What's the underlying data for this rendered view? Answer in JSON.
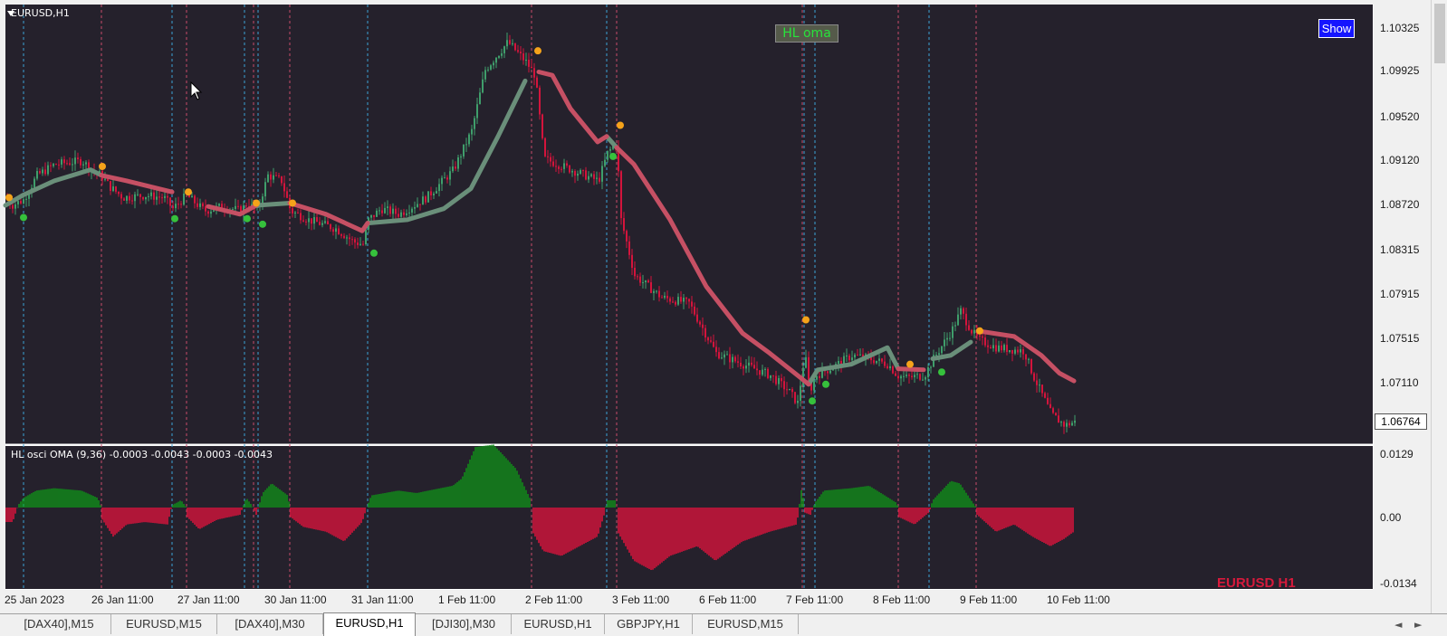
{
  "chart_window": {
    "symbol_label": "EURUSD,H1",
    "indicator_button": "HL oma",
    "show_button": "Show",
    "price_ticks": [
      "1.10325",
      "1.09925",
      "1.09520",
      "1.09120",
      "1.08720",
      "1.08315",
      "1.07915",
      "1.07515",
      "1.07110"
    ],
    "current_price": "1.06764",
    "colors": {
      "background": "#25212c",
      "bull": "#3f9e6b",
      "bear": "#d4143c",
      "ma_up": "#6a8f7a",
      "ma_down": "#c65064",
      "dot_high": "#f5a31a",
      "dot_low": "#36c13c"
    }
  },
  "oscillator": {
    "title": "HL osci OMA (9,36) -0.0003 -0.0043 -0.0003 -0.0043",
    "ticks": [
      "0.0129",
      "0.00",
      "-0.0134"
    ],
    "watermark": "EURUSD H1",
    "colors": {
      "positive": "#118a1a",
      "negative": "#d4143c"
    }
  },
  "time_axis": [
    "25 Jan 2023",
    "26 Jan 11:00",
    "27 Jan 11:00",
    "30 Jan 11:00",
    "31 Jan 11:00",
    "1 Feb 11:00",
    "2 Feb 11:00",
    "3 Feb 11:00",
    "6 Feb 11:00",
    "7 Feb 11:00",
    "8 Feb 11:00",
    "9 Feb 11:00",
    "10 Feb 11:00"
  ],
  "tabs": [
    "[DAX40],M15",
    "EURUSD,M15",
    "[DAX40],M30",
    "EURUSD,H1",
    "[DJI30],M30",
    "EURUSD,H1",
    "GBPJPY,H1",
    "EURUSD,M15"
  ],
  "active_tab": "EURUSD,H1",
  "scroll_arrows": {
    "left": "◄",
    "right": "►"
  }
}
